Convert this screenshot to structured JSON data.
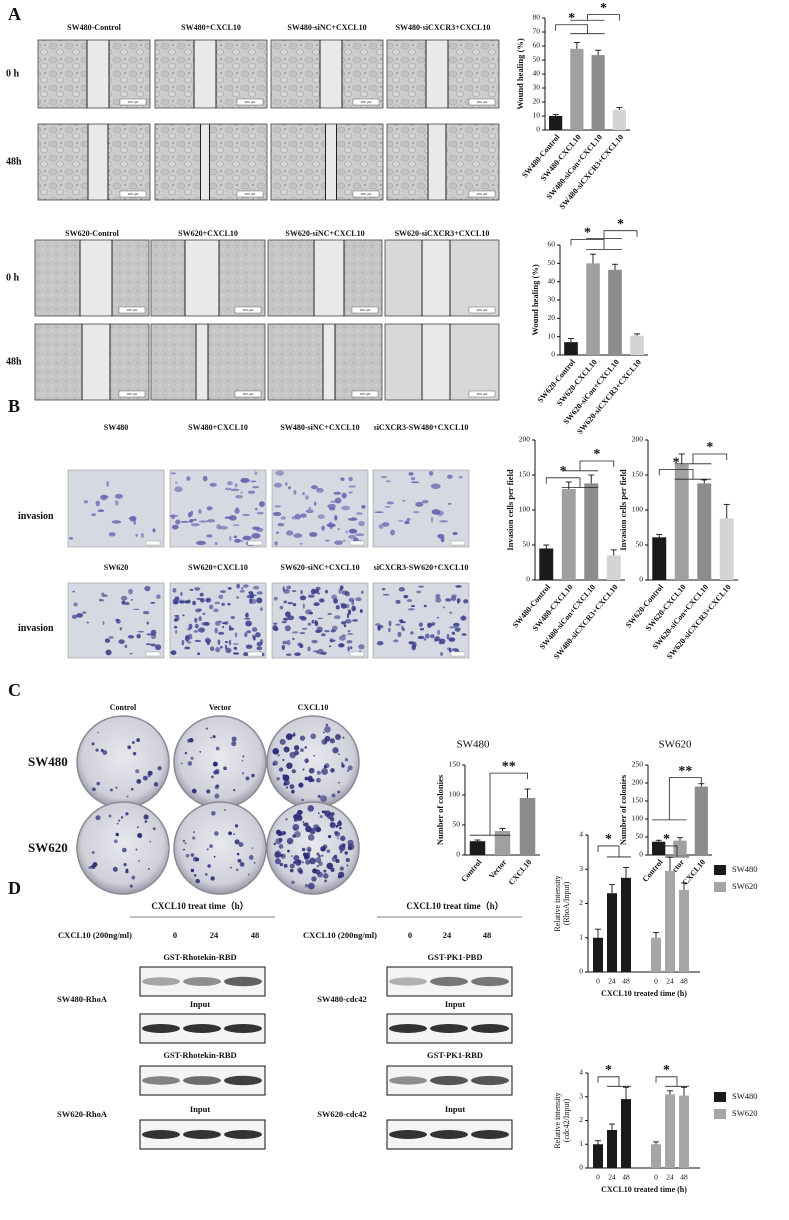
{
  "panel_labels": [
    "A",
    "B",
    "C",
    "D"
  ],
  "scale_bar": "200 μm",
  "wound": [
    {
      "columns": [
        "SW480-Control",
        "SW480+CXCL10",
        "SW480-siNC+CXCL10",
        "SW480-siCXCR3+CXCL10"
      ],
      "rows": [
        "0 h",
        "48h"
      ]
    },
    {
      "columns": [
        "SW620-Control",
        "SW620+CXCL10",
        "SW620-siNC+CXCL10",
        "SW620-siCXCR3+CXCL10"
      ],
      "rows": [
        "0 h",
        "48h"
      ]
    }
  ],
  "invasion": {
    "row_label": "invasion",
    "rows": [
      [
        "SW480",
        "SW480+CXCL10",
        "SW480-siNC+CXCL10",
        "siCXCR3-SW480+CXCL10"
      ],
      [
        "SW620",
        "SW620+CXCL10",
        "SW620-siNC+CXCL10",
        "siCXCR3-SW620+CXCL10"
      ]
    ]
  },
  "colony": {
    "columns": [
      "Control",
      "Vector",
      "CXCL10"
    ],
    "rows": [
      "SW480",
      "SW620"
    ]
  },
  "blots": [
    {
      "treat_time": "CXCL10 treat time（h）",
      "dose": "CXCL10 (200ng/ml)",
      "times": [
        "0",
        "24",
        "48"
      ],
      "groups": [
        {
          "pull": "GST-Rhotekin-RBD",
          "input": "Input",
          "label": "SW480-RhoA"
        },
        {
          "pull": "GST-Rhotekin-RBD",
          "input": "Input",
          "label": "SW620-RhoA"
        }
      ]
    },
    {
      "treat_time": "CXCL10 treat time（h）",
      "dose": "CXCL10 (200ng/ml)",
      "times": [
        "0",
        "24",
        "48"
      ],
      "groups": [
        {
          "pull": "GST-PK1-PBD",
          "input": "Input",
          "label": "SW480-cdc42"
        },
        {
          "pull": "GST-PK1-RBD",
          "input": "Input",
          "label": "SW620-cdc42"
        }
      ]
    }
  ],
  "chart_data": [
    {
      "type": "bar",
      "ylabel": "Wound healing (%)",
      "categories": [
        "SW480-Control",
        "SW480-CXCL10",
        "SW480-siCon+CXCL10",
        "SW480-siCXCR3+CXCL10"
      ],
      "values": [
        10,
        58,
        53.5,
        14.5
      ],
      "errors": [
        1,
        4.5,
        3.5,
        1.5
      ],
      "colors": [
        "#1a1a1a",
        "#a0a0a0",
        "#8c8c8c",
        "#d4d4d4"
      ],
      "ylim": [
        0,
        80
      ],
      "yticks": [
        0,
        10,
        20,
        30,
        40,
        50,
        60,
        70,
        80
      ],
      "annotations": [
        "*",
        "*"
      ]
    },
    {
      "type": "bar",
      "ylabel": "Wound healing (%)",
      "categories": [
        "SW620-Control",
        "SW620-CXCL10",
        "SW620-siCon+CXCL10",
        "SW620-siCXCR3+CXCL10"
      ],
      "values": [
        7,
        50,
        46.5,
        10.5
      ],
      "errors": [
        2,
        5,
        3,
        1
      ],
      "colors": [
        "#1a1a1a",
        "#a0a0a0",
        "#8c8c8c",
        "#d4d4d4"
      ],
      "ylim": [
        0,
        60
      ],
      "yticks": [
        0,
        10,
        20,
        30,
        40,
        50,
        60
      ],
      "annotations": [
        "*",
        "*"
      ]
    },
    {
      "type": "bar",
      "ylabel": "Invasion cells per field",
      "categories": [
        "SW480-Control",
        "SW480-CXCL10",
        "SW480-siCon+CXCL10",
        "SW480-siCXCR3+CXCL10"
      ],
      "values": [
        45,
        130,
        138,
        35
      ],
      "errors": [
        5,
        10,
        12,
        8
      ],
      "colors": [
        "#1a1a1a",
        "#a0a0a0",
        "#8c8c8c",
        "#d4d4d4"
      ],
      "ylim": [
        0,
        200
      ],
      "yticks": [
        0,
        50,
        100,
        150,
        200
      ],
      "annotations": [
        "*",
        "*"
      ]
    },
    {
      "type": "bar",
      "ylabel": "Invasion cells per field",
      "categories": [
        "SW620-Control",
        "SW620-CXCL10",
        "SW620-siCon+CXCL10",
        "SW620-siCXCR3+CXCL10"
      ],
      "values": [
        61,
        165,
        138,
        88
      ],
      "errors": [
        4,
        15,
        5,
        20
      ],
      "colors": [
        "#1a1a1a",
        "#a0a0a0",
        "#8c8c8c",
        "#d4d4d4"
      ],
      "ylim": [
        0,
        200
      ],
      "yticks": [
        0,
        50,
        100,
        150,
        200
      ],
      "annotations": [
        "*",
        "*"
      ]
    },
    {
      "type": "bar",
      "title": "SW480",
      "ylabel": "Number of colonies",
      "categories": [
        "Control",
        "Vector",
        "CXCL10"
      ],
      "values": [
        23,
        40,
        95
      ],
      "errors": [
        2,
        4,
        15
      ],
      "colors": [
        "#1a1a1a",
        "#a0a0a0",
        "#8c8c8c"
      ],
      "ylim": [
        0,
        150
      ],
      "yticks": [
        0,
        50,
        100,
        150
      ],
      "annotations": [
        "**"
      ]
    },
    {
      "type": "bar",
      "title": "SW620",
      "ylabel": "Number of colonies",
      "categories": [
        "Control",
        "Vector",
        "CXCL10"
      ],
      "values": [
        37,
        40,
        190
      ],
      "errors": [
        4,
        8,
        8
      ],
      "colors": [
        "#1a1a1a",
        "#a0a0a0",
        "#8c8c8c"
      ],
      "ylim": [
        0,
        250
      ],
      "yticks": [
        0,
        50,
        100,
        150,
        200,
        250
      ],
      "annotations": [
        "**"
      ]
    },
    {
      "type": "grouped_bar",
      "ylabel": [
        "Relative intensity",
        "(RhoA/Input)"
      ],
      "xlabel": "CXCL10 treated time (h)",
      "categories": [
        "0",
        "24",
        "48"
      ],
      "series": [
        {
          "name": "SW480",
          "color": "#1a1a1a",
          "values": [
            1.0,
            2.3,
            2.75
          ],
          "errors": [
            0.25,
            0.25,
            0.3
          ]
        },
        {
          "name": "SW620",
          "color": "#a6a6a6",
          "values": [
            1.0,
            2.95,
            2.4
          ],
          "errors": [
            0.15,
            0.4,
            0.2
          ]
        }
      ],
      "ylim": [
        0,
        4
      ],
      "yticks": [
        0,
        1,
        2,
        3,
        4
      ],
      "annotations": [
        "*",
        "*"
      ]
    },
    {
      "type": "grouped_bar",
      "ylabel": [
        "Relative intensity",
        "(cdc42/Input)"
      ],
      "xlabel": "CXCL10 treated time (h)",
      "categories": [
        "0",
        "24",
        "48"
      ],
      "series": [
        {
          "name": "SW480",
          "color": "#1a1a1a",
          "values": [
            1.0,
            1.6,
            2.9
          ],
          "errors": [
            0.15,
            0.25,
            0.5
          ]
        },
        {
          "name": "SW620",
          "color": "#a6a6a6",
          "values": [
            1.0,
            3.1,
            3.05
          ],
          "errors": [
            0.1,
            0.15,
            0.35
          ]
        }
      ],
      "ylim": [
        0,
        4
      ],
      "yticks": [
        0,
        1,
        2,
        3,
        4
      ],
      "annotations": [
        "*",
        "*"
      ]
    }
  ]
}
